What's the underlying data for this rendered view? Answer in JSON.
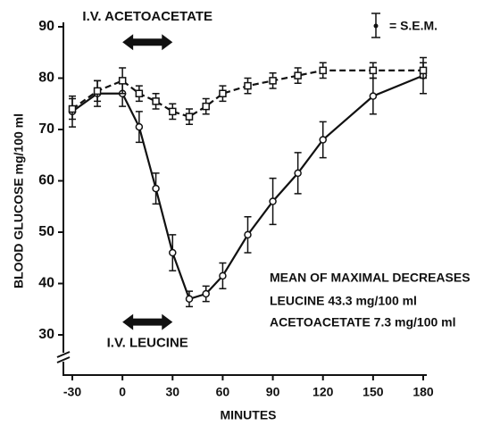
{
  "chart_data": {
    "type": "line",
    "x_label": "MINUTES",
    "y_label": "BLOOD GLUCOSE mg/100 ml",
    "xlim": [
      -30,
      180
    ],
    "xticks": [
      -30,
      0,
      30,
      60,
      90,
      120,
      150,
      180
    ],
    "ylim": [
      22,
      90
    ],
    "yticks": [
      30,
      40,
      50,
      60,
      70,
      80,
      90
    ],
    "series": [
      {
        "color": "#111111",
        "line_style": "solid",
        "marker": "circle",
        "x": [
          -30,
          -15,
          0,
          10,
          20,
          30,
          40,
          50,
          60,
          75,
          90,
          105,
          120,
          150,
          180
        ],
        "values": [
          73.5,
          77,
          77,
          70.5,
          58.5,
          46,
          37,
          38,
          41.5,
          49.5,
          56,
          61.5,
          68,
          76.5,
          80.5
        ],
        "errors": [
          3,
          2.5,
          2.5,
          3,
          3,
          3.5,
          1.5,
          1.5,
          2.5,
          3.5,
          4.5,
          4,
          3.5,
          3.5,
          3.5
        ]
      },
      {
        "color": "#111111",
        "line_style": "dashed",
        "marker": "square",
        "x": [
          -30,
          -15,
          0,
          10,
          20,
          30,
          40,
          50,
          60,
          75,
          90,
          105,
          120,
          150,
          180
        ],
        "values": [
          74,
          77.5,
          79.5,
          77,
          75.5,
          73.5,
          72.5,
          74.5,
          77,
          78.5,
          79.5,
          80.5,
          81.5,
          81.5,
          81.5
        ],
        "errors": [
          2,
          2,
          2.5,
          1.5,
          1.5,
          1.5,
          1.5,
          1.5,
          1.5,
          1.5,
          1.5,
          1.5,
          1.5,
          1.5,
          1.5
        ]
      }
    ],
    "annotations": [
      {
        "text": "I.V. ACETOACETATE",
        "span": [
          0,
          30
        ],
        "y": 87
      },
      {
        "text": "I.V. LEUCINE",
        "span": [
          0,
          30
        ],
        "y": 32.5
      }
    ],
    "legend_text": "= S.E.M.",
    "note": [
      "MEAN OF MAXIMAL DECREASES",
      "LEUCINE 43.3 mg/100 ml",
      "ACETOACETATE 7.3 mg/100 ml"
    ]
  }
}
